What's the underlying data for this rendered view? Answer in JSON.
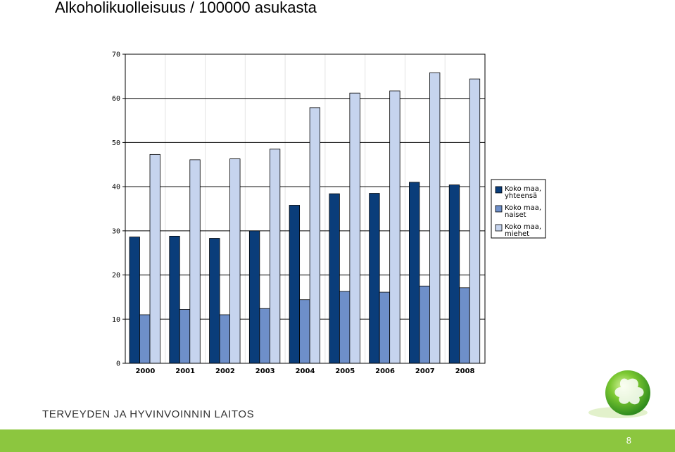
{
  "title": "Alkoholikuolleisuus / 100000 asukasta",
  "organization": "TERVEYDEN JA HYVINVOINNIN LAITOS",
  "page_number": "8",
  "chart_data": {
    "type": "bar",
    "title": "",
    "xlabel": "",
    "ylabel": "",
    "categories": [
      "2000",
      "2001",
      "2002",
      "2003",
      "2004",
      "2005",
      "2006",
      "2007",
      "2008"
    ],
    "ylim": [
      0,
      70
    ],
    "yticks": [
      0,
      10,
      20,
      30,
      40,
      50,
      60,
      70
    ],
    "grid": true,
    "legend_position": "right",
    "series": [
      {
        "name": [
          "Koko maa,",
          "yhteensä"
        ],
        "color": "#0a3d7a",
        "values": [
          28.6,
          28.8,
          28.3,
          30.0,
          35.8,
          38.4,
          38.5,
          41.0,
          40.4
        ]
      },
      {
        "name": [
          "Koko maa,",
          "naiset"
        ],
        "color": "#6e8fc9",
        "values": [
          11.0,
          12.2,
          11.0,
          12.4,
          14.4,
          16.3,
          16.1,
          17.5,
          17.1
        ]
      },
      {
        "name": [
          "Koko maa,",
          "miehet"
        ],
        "color": "#c6d4ee",
        "values": [
          47.3,
          46.1,
          46.3,
          48.5,
          57.9,
          61.2,
          61.7,
          65.8,
          64.4
        ]
      }
    ]
  }
}
